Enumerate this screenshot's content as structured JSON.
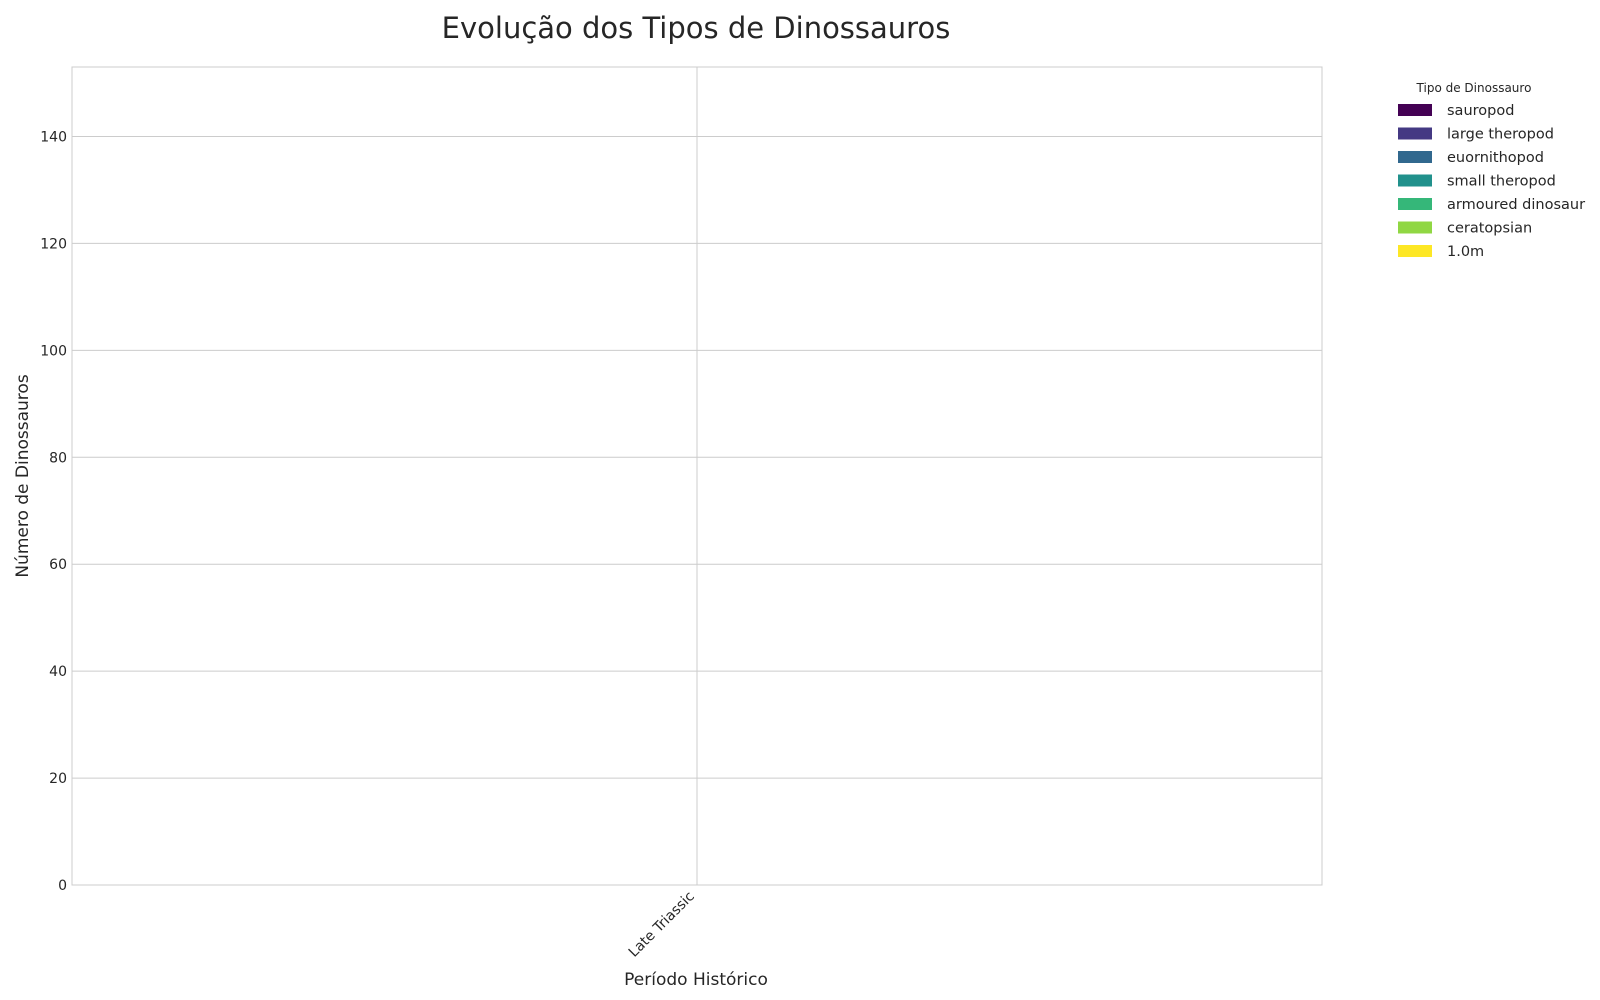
{
  "chart_data": {
    "type": "bar",
    "stacked": true,
    "title": "Evolução dos Tipos de Dinossauros",
    "xlabel": "Período Histórico",
    "ylabel": "Número de Dinossauros",
    "categories": [
      "Late Triassic"
    ],
    "ylim": [
      0,
      153
    ],
    "yticks": [
      0,
      20,
      40,
      60,
      80,
      100,
      120,
      140
    ],
    "grid": true,
    "legend": {
      "title": "Tipo de Dinossauro",
      "placement": "outside-top-right"
    },
    "series": [
      {
        "name": "sauropod",
        "color": "#440154",
        "values": [
          0
        ]
      },
      {
        "name": "large theropod",
        "color": "#443983",
        "values": [
          0
        ]
      },
      {
        "name": "euornithopod",
        "color": "#31688e",
        "values": [
          0
        ]
      },
      {
        "name": "small theropod",
        "color": "#21918c",
        "values": [
          0
        ]
      },
      {
        "name": "armoured dinosaur",
        "color": "#35b779",
        "values": [
          0
        ]
      },
      {
        "name": "ceratopsian",
        "color": "#90d743",
        "values": [
          0
        ]
      },
      {
        "name": "1.0m",
        "color": "#fde725",
        "values": [
          0
        ]
      }
    ]
  }
}
